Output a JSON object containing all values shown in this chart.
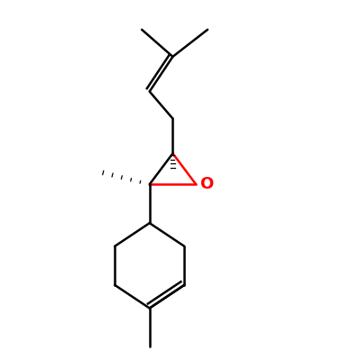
{
  "background_color": "#ffffff",
  "bond_color": "#000000",
  "oxygen_color": "#ff0000",
  "line_width": 1.8,
  "figsize": [
    4.0,
    4.0
  ],
  "dpi": 100,
  "xlim": [
    1.0,
    7.0
  ],
  "ylim": [
    0.3,
    9.5
  ]
}
